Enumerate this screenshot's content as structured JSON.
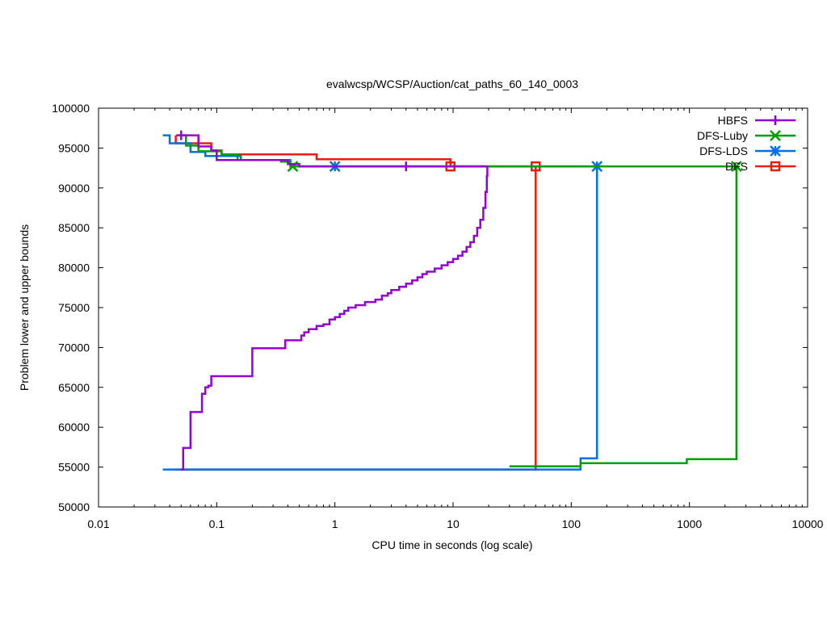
{
  "chart_data": {
    "type": "line",
    "title": "evalwcsp/WCSP/Auction/cat_paths_60_140_0003",
    "xlabel": "CPU time in seconds (log scale)",
    "ylabel": "Problem lower and upper bounds",
    "xscale": "log",
    "xlim": [
      0.01,
      10000
    ],
    "ylim": [
      50000,
      100000
    ],
    "xticks": [
      0.01,
      0.1,
      1,
      10,
      100,
      1000,
      10000
    ],
    "xtick_labels": [
      "0.01",
      "0.1",
      "1",
      "10",
      "100",
      "1000",
      "10000"
    ],
    "yticks": [
      50000,
      55000,
      60000,
      65000,
      70000,
      75000,
      80000,
      85000,
      90000,
      95000,
      100000
    ],
    "ytick_labels": [
      "50000",
      "55000",
      "60000",
      "65000",
      "70000",
      "75000",
      "80000",
      "85000",
      "90000",
      "95000",
      "100000"
    ],
    "grid": false,
    "legend_position": "top-right",
    "series": [
      {
        "name": "HBFS",
        "color": "#9400d3",
        "marker": "plus",
        "upper": [
          [
            0.05,
            96600
          ],
          [
            0.07,
            96600
          ],
          [
            0.07,
            95200
          ],
          [
            0.09,
            95200
          ],
          [
            0.09,
            94700
          ],
          [
            0.1,
            94700
          ],
          [
            0.1,
            93500
          ],
          [
            0.4,
            93500
          ],
          [
            0.4,
            93000
          ],
          [
            0.5,
            93000
          ],
          [
            0.5,
            92700
          ],
          [
            19.5,
            92700
          ]
        ],
        "lower": [
          [
            0.05,
            54700
          ],
          [
            0.052,
            54700
          ],
          [
            0.052,
            57400
          ],
          [
            0.06,
            57400
          ],
          [
            0.06,
            61900
          ],
          [
            0.075,
            61900
          ],
          [
            0.075,
            64200
          ],
          [
            0.08,
            64200
          ],
          [
            0.08,
            65000
          ],
          [
            0.085,
            65000
          ],
          [
            0.085,
            65200
          ],
          [
            0.09,
            65200
          ],
          [
            0.09,
            66400
          ],
          [
            0.2,
            66400
          ],
          [
            0.2,
            69900
          ],
          [
            0.38,
            69900
          ],
          [
            0.38,
            70900
          ],
          [
            0.52,
            70900
          ],
          [
            0.52,
            71500
          ],
          [
            0.55,
            71500
          ],
          [
            0.55,
            71900
          ],
          [
            0.6,
            71900
          ],
          [
            0.6,
            72300
          ],
          [
            0.7,
            72300
          ],
          [
            0.7,
            72700
          ],
          [
            0.8,
            72700
          ],
          [
            0.8,
            72900
          ],
          [
            0.9,
            72900
          ],
          [
            0.9,
            73500
          ],
          [
            1.0,
            73500
          ],
          [
            1.0,
            73800
          ],
          [
            1.1,
            73800
          ],
          [
            1.1,
            74200
          ],
          [
            1.2,
            74200
          ],
          [
            1.2,
            74600
          ],
          [
            1.3,
            74600
          ],
          [
            1.3,
            75000
          ],
          [
            1.5,
            75000
          ],
          [
            1.5,
            75300
          ],
          [
            1.8,
            75300
          ],
          [
            1.8,
            75700
          ],
          [
            2.2,
            75700
          ],
          [
            2.2,
            76000
          ],
          [
            2.5,
            76000
          ],
          [
            2.5,
            76500
          ],
          [
            2.8,
            76500
          ],
          [
            2.8,
            76800
          ],
          [
            3.0,
            76800
          ],
          [
            3.0,
            77200
          ],
          [
            3.5,
            77200
          ],
          [
            3.5,
            77600
          ],
          [
            4.0,
            77600
          ],
          [
            4.0,
            78000
          ],
          [
            4.5,
            78000
          ],
          [
            4.5,
            78400
          ],
          [
            5.0,
            78400
          ],
          [
            5.0,
            78800
          ],
          [
            5.5,
            78800
          ],
          [
            5.5,
            79200
          ],
          [
            6.0,
            79200
          ],
          [
            6.0,
            79500
          ],
          [
            7.0,
            79500
          ],
          [
            7.0,
            79900
          ],
          [
            8.0,
            79900
          ],
          [
            8.0,
            80300
          ],
          [
            9.0,
            80300
          ],
          [
            9.0,
            80700
          ],
          [
            10.0,
            80700
          ],
          [
            10.0,
            81100
          ],
          [
            11.0,
            81100
          ],
          [
            11.0,
            81500
          ],
          [
            12.0,
            81500
          ],
          [
            12.0,
            82000
          ],
          [
            13.0,
            82000
          ],
          [
            13.0,
            82600
          ],
          [
            14.0,
            82600
          ],
          [
            14.0,
            83200
          ],
          [
            15.0,
            83200
          ],
          [
            15.0,
            84000
          ],
          [
            16.0,
            84000
          ],
          [
            16.0,
            85000
          ],
          [
            17.0,
            85000
          ],
          [
            17.0,
            86000
          ],
          [
            18.0,
            86000
          ],
          [
            18.0,
            87500
          ],
          [
            18.8,
            87500
          ],
          [
            18.8,
            89500
          ],
          [
            19.3,
            89500
          ],
          [
            19.3,
            91500
          ],
          [
            19.5,
            91500
          ],
          [
            19.5,
            92700
          ]
        ],
        "markers": [
          [
            0.05,
            96600
          ],
          [
            4.0,
            92700
          ]
        ]
      },
      {
        "name": "DFS-Luby",
        "color": "#009e00",
        "marker": "x",
        "upper": [
          [
            0.055,
            96600
          ],
          [
            0.055,
            95300
          ],
          [
            0.07,
            95300
          ],
          [
            0.07,
            94600
          ],
          [
            0.11,
            94600
          ],
          [
            0.11,
            94200
          ],
          [
            0.15,
            94200
          ],
          [
            0.15,
            93500
          ],
          [
            0.35,
            93500
          ],
          [
            0.35,
            93300
          ],
          [
            0.42,
            93300
          ],
          [
            0.42,
            92700
          ],
          [
            2500,
            92700
          ]
        ],
        "lower": [
          [
            30,
            55100
          ],
          [
            120,
            55100
          ],
          [
            120,
            55500
          ],
          [
            950,
            55500
          ],
          [
            950,
            56000
          ],
          [
            2500,
            56000
          ],
          [
            2500,
            92700
          ]
        ],
        "markers": [
          [
            0.44,
            92700
          ],
          [
            2500,
            92700
          ]
        ]
      },
      {
        "name": "DFS-LDS",
        "color": "#0072e0",
        "marker": "star",
        "upper": [
          [
            0.035,
            96600
          ],
          [
            0.04,
            96600
          ],
          [
            0.04,
            95600
          ],
          [
            0.06,
            95600
          ],
          [
            0.06,
            94500
          ],
          [
            0.08,
            94500
          ],
          [
            0.08,
            94000
          ],
          [
            0.16,
            94000
          ],
          [
            0.16,
            93500
          ],
          [
            0.42,
            93500
          ],
          [
            0.42,
            92700
          ],
          [
            165,
            92700
          ]
        ],
        "lower": [
          [
            0.035,
            54700
          ],
          [
            120,
            54700
          ],
          [
            120,
            56100
          ],
          [
            165,
            56100
          ],
          [
            165,
            92700
          ]
        ],
        "markers": [
          [
            1.0,
            92700
          ],
          [
            165,
            92700
          ]
        ]
      },
      {
        "name": "DFS",
        "color": "#e51e10",
        "marker": "square",
        "upper": [
          [
            0.045,
            96600
          ],
          [
            0.045,
            95600
          ],
          [
            0.09,
            95600
          ],
          [
            0.09,
            94700
          ],
          [
            0.11,
            94700
          ],
          [
            0.11,
            94200
          ],
          [
            0.7,
            94200
          ],
          [
            0.7,
            93600
          ],
          [
            9.5,
            93600
          ],
          [
            9.5,
            92700
          ],
          [
            50,
            92700
          ]
        ],
        "lower": [
          [
            0.045,
            54700
          ],
          [
            50,
            54700
          ],
          [
            50,
            92700
          ]
        ],
        "markers": [
          [
            9.5,
            92700
          ],
          [
            50,
            92700
          ]
        ]
      }
    ]
  }
}
